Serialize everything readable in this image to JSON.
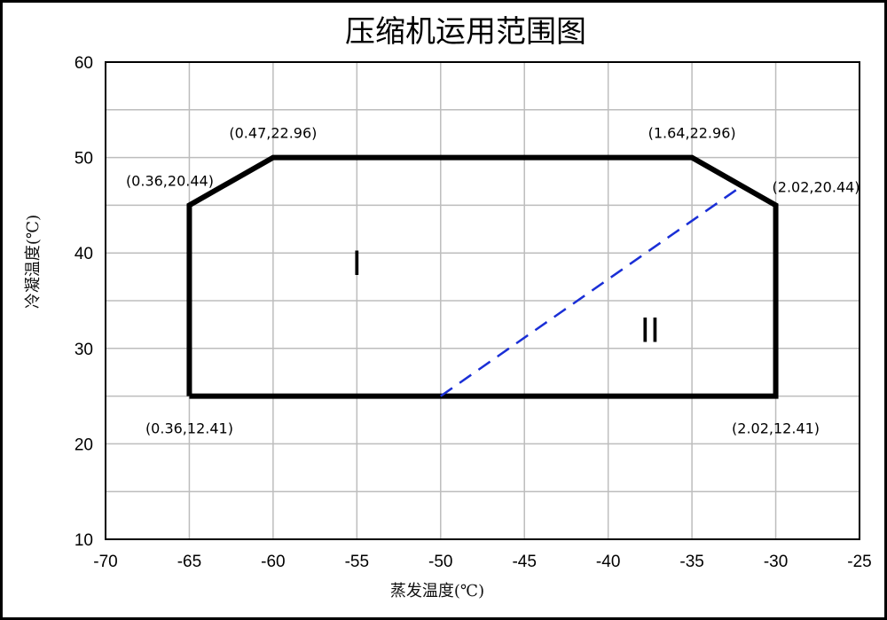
{
  "chart_data": {
    "type": "line",
    "title": "压缩机运用范围图",
    "xlabel": "蒸发温度(℃)",
    "ylabel": "冷凝温度(℃)",
    "xlim": [
      -70,
      -25
    ],
    "ylim": [
      10,
      60
    ],
    "x_ticks": [
      -70,
      -65,
      -60,
      -55,
      -50,
      -45,
      -40,
      -35,
      -30,
      -25
    ],
    "y_ticks": [
      10,
      20,
      30,
      40,
      50,
      60
    ],
    "grid": true,
    "series": [
      {
        "style": "solid-thick",
        "color": "#000000",
        "points": [
          {
            "x": -65,
            "y": 25
          },
          {
            "x": -65,
            "y": 45
          },
          {
            "x": -60,
            "y": 50
          },
          {
            "x": -35,
            "y": 50
          },
          {
            "x": -30,
            "y": 45
          },
          {
            "x": -30,
            "y": 25
          },
          {
            "x": -65,
            "y": 25
          }
        ]
      },
      {
        "style": "dashed",
        "color": "#1a2fd6",
        "points": [
          {
            "x": -50,
            "y": 25
          },
          {
            "x": -32.2,
            "y": 46.8
          }
        ]
      }
    ],
    "annotations": [
      {
        "text": "(0.47,22.96)",
        "x": -60,
        "y": 50,
        "anchor": "above"
      },
      {
        "text": "(1.64,22.96)",
        "x": -35,
        "y": 50,
        "anchor": "above"
      },
      {
        "text": "(0.36,20.44)",
        "x": -65,
        "y": 45,
        "anchor": "above-left"
      },
      {
        "text": "(2.02,20.44)",
        "x": -30,
        "y": 45,
        "anchor": "above-right"
      },
      {
        "text": "(0.36,12.41)",
        "x": -65,
        "y": 25,
        "anchor": "below"
      },
      {
        "text": "(2.02,12.41)",
        "x": -30,
        "y": 25,
        "anchor": "below"
      }
    ],
    "region_labels": [
      {
        "text": "I",
        "x": -55,
        "y": 39
      },
      {
        "text": "II",
        "x": -37.5,
        "y": 32
      }
    ]
  }
}
